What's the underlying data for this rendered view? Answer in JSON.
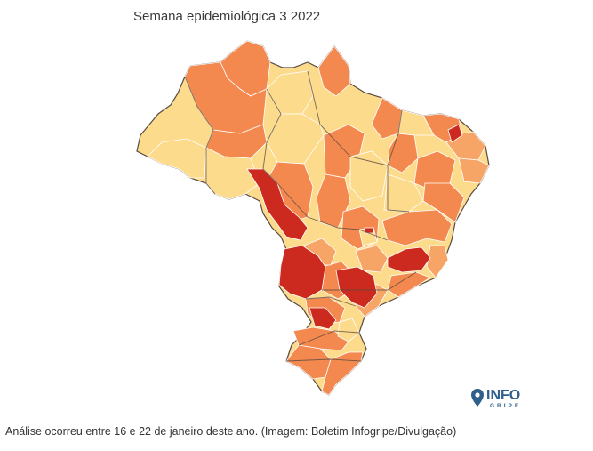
{
  "map": {
    "title": "Semana epidemiológica 3 2022",
    "colors": {
      "low": "#fddb8c",
      "medium": "#f4894f",
      "medium_light": "#f7a567",
      "high": "#cc2a1f",
      "border": "#5a4a40",
      "internal_border": "#ffffff"
    }
  },
  "logo": {
    "icon": "location-pin-icon",
    "word": "INFO",
    "sub": "GRIPE"
  },
  "caption": "Análise ocorreu entre 16 e 22 de janeiro deste ano. (Imagem: Boletim Infogripe/Divulgação)"
}
